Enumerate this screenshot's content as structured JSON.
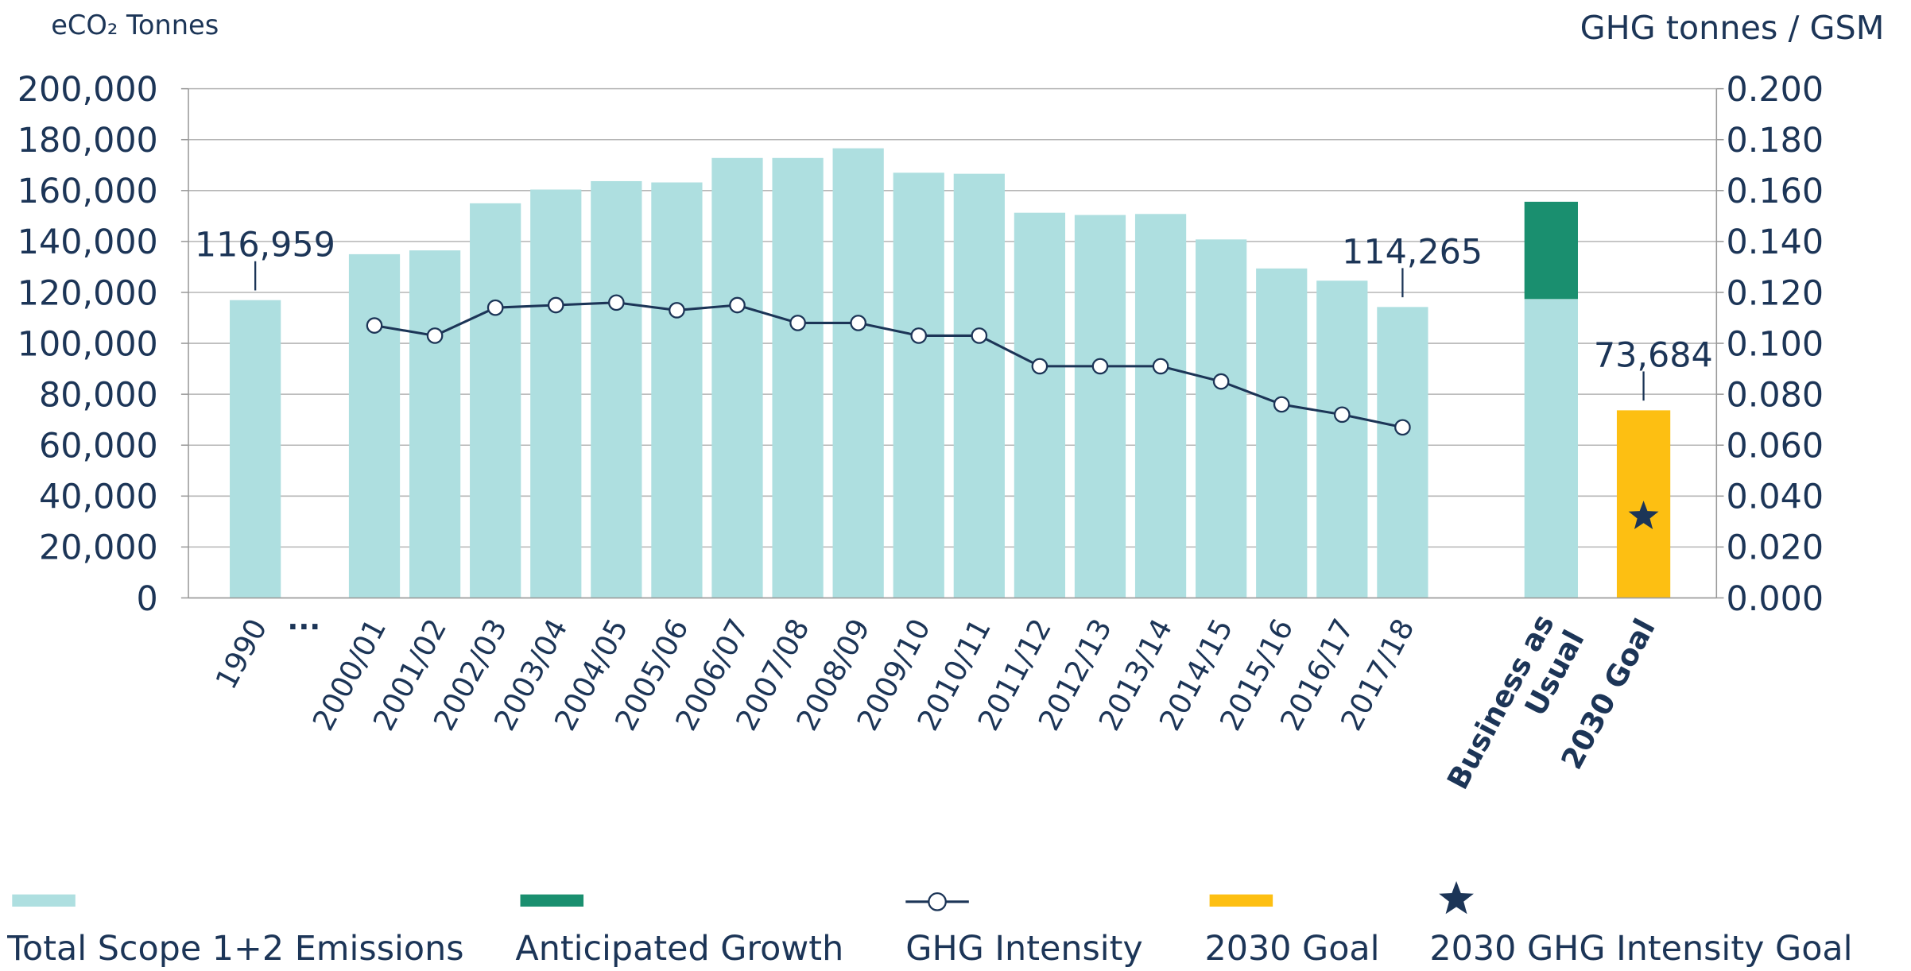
{
  "chart_data": {
    "type": "bar",
    "y_label": "eCO₂ Tonnes",
    "y2_label": "GHG tonnes / GSM",
    "categories": [
      "1990",
      "...",
      "2000/01",
      "2001/02",
      "2002/03",
      "2003/04",
      "2004/05",
      "2005/06",
      "2006/07",
      "2007/08",
      "2008/09",
      "2009/10",
      "2010/11",
      "2011/12",
      "2012/13",
      "2013/14",
      "2014/15",
      "2015/16",
      "2016/17",
      "2017/18",
      "Business as Usual",
      "2030 Goal"
    ],
    "ylim": [
      0,
      200000
    ],
    "yticks": [
      0,
      {
        "value": 20000,
        "label": "20,000"
      },
      {
        "value": 40000,
        "label": "40,000"
      },
      {
        "value": 60000,
        "label": "60,000"
      },
      {
        "value": 80000,
        "label": "80,000"
      },
      {
        "value": 100000,
        "label": "100,000"
      },
      {
        "value": 120000,
        "label": "120,000"
      },
      {
        "value": 140000,
        "label": "140,000"
      },
      {
        "value": 160000,
        "label": "160,000"
      },
      {
        "value": 180000,
        "label": "180,000"
      },
      {
        "value": 200000,
        "label": "200,000"
      }
    ],
    "y2lim": [
      0,
      0.2
    ],
    "y2ticks": [
      {
        "value": 0,
        "label": "0.000"
      },
      {
        "value": 0.02,
        "label": "0.020"
      },
      {
        "value": 0.04,
        "label": "0.040"
      },
      {
        "value": 0.06,
        "label": "0.060"
      },
      {
        "value": 0.08,
        "label": "0.080"
      },
      {
        "value": 0.1,
        "label": "0.100"
      },
      {
        "value": 0.12,
        "label": "0.120"
      },
      {
        "value": 0.14,
        "label": "0.140"
      },
      {
        "value": 0.16,
        "label": "0.160"
      },
      {
        "value": 0.18,
        "label": "0.180"
      },
      {
        "value": 0.2,
        "label": "0.200"
      }
    ],
    "grid": true,
    "series": [
      {
        "name": "Total Scope 1+2 Emissions",
        "type": "bar",
        "color": "#aedfe0",
        "values": [
          116959,
          null,
          135000,
          136500,
          155000,
          160400,
          163700,
          163200,
          172800,
          172800,
          176600,
          167000,
          166600,
          151300,
          150400,
          150800,
          140800,
          129400,
          124600,
          114265,
          117400,
          null
        ],
        "value_labels": [
          "116,959",
          null,
          null,
          null,
          null,
          null,
          null,
          null,
          null,
          null,
          null,
          null,
          null,
          null,
          null,
          null,
          null,
          null,
          null,
          "114,265",
          null,
          null
        ]
      },
      {
        "name": "Anticipated Growth",
        "type": "bar",
        "color": "#1a8f6f",
        "values": [
          null,
          null,
          null,
          null,
          null,
          null,
          null,
          null,
          null,
          null,
          null,
          null,
          null,
          null,
          null,
          null,
          null,
          null,
          null,
          null,
          38200,
          null
        ]
      },
      {
        "name": "GHG Intensity",
        "type": "line",
        "axis": "y2",
        "color": "#1c3557",
        "values": [
          null,
          null,
          0.107,
          0.103,
          0.114,
          0.115,
          0.116,
          0.113,
          0.115,
          0.108,
          0.108,
          0.103,
          0.103,
          0.091,
          0.091,
          0.091,
          0.085,
          0.076,
          0.072,
          0.067,
          null,
          null
        ]
      },
      {
        "name": "2030 Goal",
        "type": "bar",
        "color": "#fdbf12",
        "values": [
          null,
          null,
          null,
          null,
          null,
          null,
          null,
          null,
          null,
          null,
          null,
          null,
          null,
          null,
          null,
          null,
          null,
          null,
          null,
          null,
          null,
          73684
        ],
        "value_labels": [
          null,
          null,
          null,
          null,
          null,
          null,
          null,
          null,
          null,
          null,
          null,
          null,
          null,
          null,
          null,
          null,
          null,
          null,
          null,
          null,
          null,
          "73,684"
        ]
      },
      {
        "name": "2030 GHG Intensity Goal",
        "type": "scatter",
        "axis": "y2",
        "color": "#1c3557",
        "values": [
          null,
          null,
          null,
          null,
          null,
          null,
          null,
          null,
          null,
          null,
          null,
          null,
          null,
          null,
          null,
          null,
          null,
          null,
          null,
          null,
          null,
          0.032
        ]
      }
    ]
  }
}
